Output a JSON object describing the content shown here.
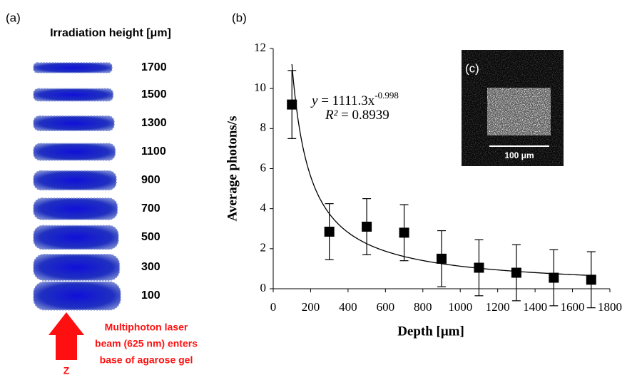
{
  "panel_labels": [
    "(a)",
    "(b)",
    "(c)"
  ],
  "panel_a": {
    "title": "Irradiation height [μm]",
    "heights": [
      1700,
      1500,
      1300,
      1100,
      900,
      700,
      500,
      300,
      100
    ],
    "beam_text": [
      "Multiphoton laser",
      "beam (625 nm) enters",
      "base of agarose gel"
    ],
    "axis_label": "Z"
  },
  "chart_data": {
    "type": "scatter",
    "x": [
      100,
      300,
      500,
      700,
      900,
      1100,
      1300,
      1500,
      1700
    ],
    "values": [
      9.2,
      2.85,
      3.1,
      2.8,
      1.5,
      1.05,
      0.8,
      0.55,
      0.45
    ],
    "errors": [
      1.7,
      1.4,
      1.4,
      1.4,
      1.4,
      1.4,
      1.4,
      1.4,
      1.4
    ],
    "color": "#000000",
    "xlabel": "Depth [μm]",
    "ylabel": "Average photons/s",
    "xlim": [
      0,
      1800
    ],
    "xticks": [
      0,
      200,
      400,
      600,
      800,
      1000,
      1200,
      1400,
      1600,
      1800
    ],
    "ylim": [
      0,
      12
    ],
    "yticks": [
      0,
      2,
      4,
      6,
      8,
      10,
      12
    ],
    "fit": {
      "a": 1111.3,
      "b": -0.998
    },
    "equation_lhs": "y",
    "equation_rhs": " = 1111.3x",
    "equation_exp": "-0.998",
    "r2_lhs": "R²",
    "r2_rhs": " = 0.8939"
  },
  "inset": {
    "scale_label": "100 μm"
  }
}
